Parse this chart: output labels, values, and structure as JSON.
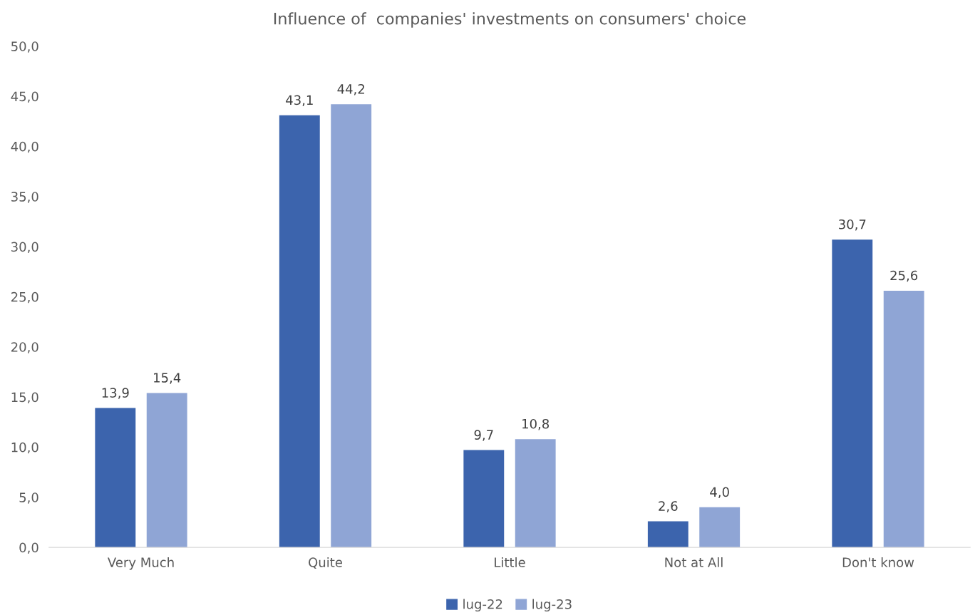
{
  "chart_data": {
    "type": "bar",
    "title": "Influence of  companies' investments on consumers' choice",
    "categories": [
      "Very Much",
      "Quite",
      "Little",
      "Not at All",
      "Don't know"
    ],
    "series": [
      {
        "name": "lug-22",
        "color": "#3c64ad",
        "values": [
          13.9,
          43.1,
          9.7,
          2.6,
          30.7
        ],
        "value_labels": [
          "13,9",
          "43,1",
          "9,7",
          "2,6",
          "30,7"
        ]
      },
      {
        "name": "lug-23",
        "color": "#8fa5d5",
        "values": [
          15.4,
          44.2,
          10.8,
          4.0,
          25.6
        ],
        "value_labels": [
          "15,4",
          "44,2",
          "10,8",
          "4,0",
          "25,6"
        ]
      }
    ],
    "ylim": [
      0,
      50
    ],
    "yticks": [
      {
        "value": 0,
        "label": "0,0"
      },
      {
        "value": 5,
        "label": "5,0"
      },
      {
        "value": 10,
        "label": "10,0"
      },
      {
        "value": 15,
        "label": "15,0"
      },
      {
        "value": 20,
        "label": "20,0"
      },
      {
        "value": 25,
        "label": "25,0"
      },
      {
        "value": 30,
        "label": "30,0"
      },
      {
        "value": 35,
        "label": "35,0"
      },
      {
        "value": 40,
        "label": "40,0"
      },
      {
        "value": 45,
        "label": "45,0"
      },
      {
        "value": 50,
        "label": "50,0"
      }
    ],
    "grid": false,
    "legend": "bottom"
  }
}
